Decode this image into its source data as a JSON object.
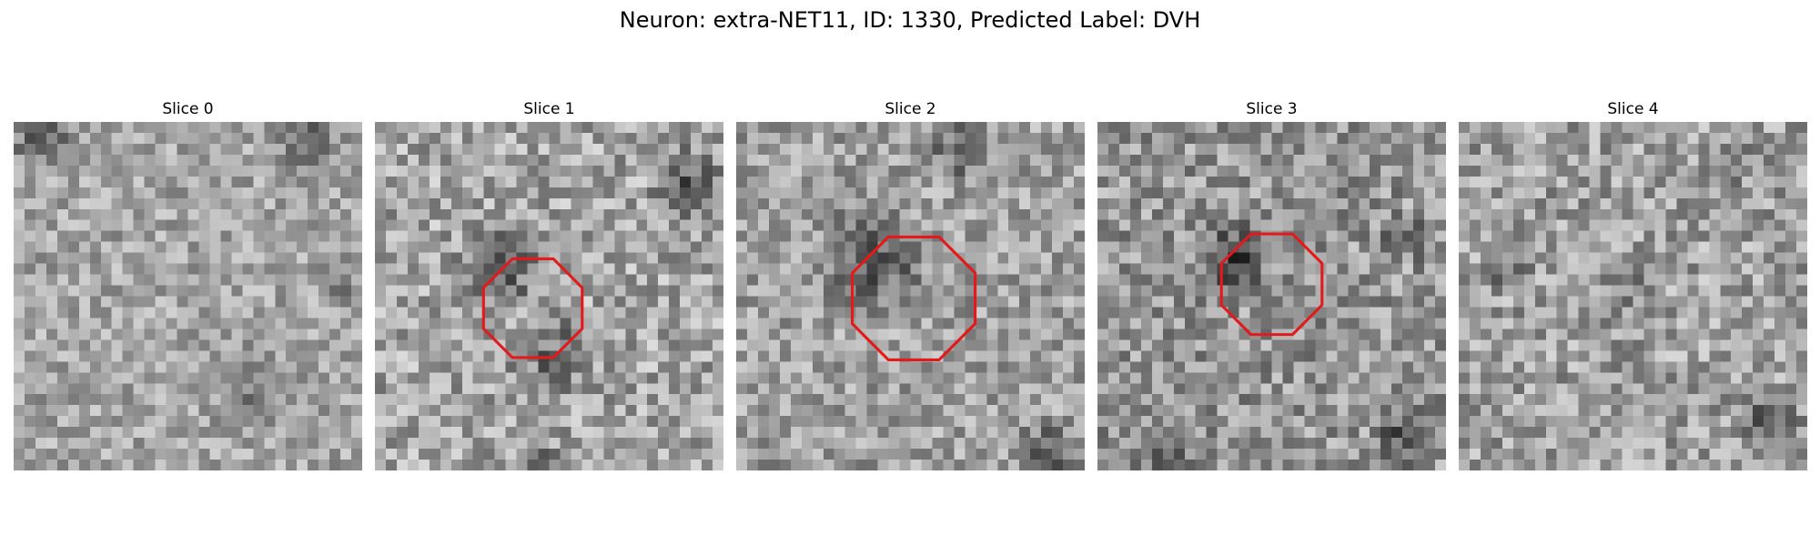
{
  "figure": {
    "title": "Neuron: extra-NET11, ID: 1330, Predicted Label: DVH"
  },
  "panels": [
    {
      "title": "Slice 0",
      "roi_outline": false
    },
    {
      "title": "Slice 1",
      "roi_outline": true
    },
    {
      "title": "Slice 2",
      "roi_outline": true
    },
    {
      "title": "Slice 3",
      "roi_outline": true
    },
    {
      "title": "Slice 4",
      "roi_outline": false
    }
  ],
  "colors": {
    "roi_outline": "#e31a1c",
    "colormap": "grayscale"
  }
}
